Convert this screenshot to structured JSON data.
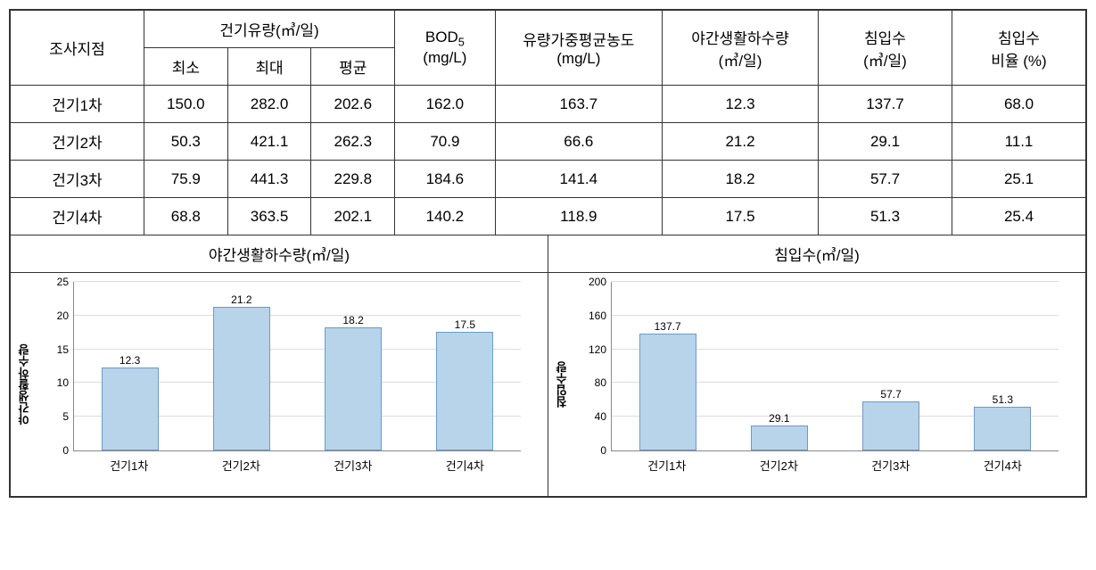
{
  "table": {
    "headers": {
      "survey_point": "조사지점",
      "dry_flow": "건기유량(㎥/일)",
      "min": "최소",
      "max": "최대",
      "avg": "평균",
      "bod5_html": "BOD",
      "bod5_sub": "5",
      "bod5_unit": "(mg/L)",
      "flow_weighted_avg_conc": "유량가중평균농도",
      "flow_weighted_unit": "(mg/L)",
      "night_domestic": "야간생활하수량",
      "night_unit": "(㎥/일)",
      "infiltration": "침입수",
      "infiltration_unit": "(㎥/일)",
      "infiltration_ratio": "침입수",
      "ratio_label": "비율 (%)"
    },
    "rows": [
      {
        "label": "건기1차",
        "min": "150.0",
        "max": "282.0",
        "avg": "202.6",
        "bod": "162.0",
        "fwac": "163.7",
        "night": "12.3",
        "infil": "137.7",
        "ratio": "68.0"
      },
      {
        "label": "건기2차",
        "min": "50.3",
        "max": "421.1",
        "avg": "262.3",
        "bod": "70.9",
        "fwac": "66.6",
        "night": "21.2",
        "infil": "29.1",
        "ratio": "11.1"
      },
      {
        "label": "건기3차",
        "min": "75.9",
        "max": "441.3",
        "avg": "229.8",
        "bod": "184.6",
        "fwac": "141.4",
        "night": "18.2",
        "infil": "57.7",
        "ratio": "25.1"
      },
      {
        "label": "건기4차",
        "min": "68.8",
        "max": "363.5",
        "avg": "202.1",
        "bod": "140.2",
        "fwac": "118.9",
        "night": "17.5",
        "infil": "51.3",
        "ratio": "25.4"
      }
    ]
  },
  "chart_left": {
    "title": "야간생활하수량(㎥/일)",
    "y_label": "야간생활하수량",
    "type": "bar",
    "ylim": [
      0,
      25
    ],
    "ytick_step": 5,
    "bar_color": "#b8d4ea",
    "bar_border": "#6a9acb",
    "grid_color": "#dddddd",
    "categories": [
      "건기1차",
      "건기2차",
      "건기3차",
      "건기4차"
    ],
    "values": [
      12.3,
      21.2,
      18.2,
      17.5
    ]
  },
  "chart_right": {
    "title": "침입수(㎥/일)",
    "y_label": "침입수량",
    "type": "bar",
    "ylim": [
      0,
      200
    ],
    "ytick_step": 40,
    "bar_color": "#b8d4ea",
    "bar_border": "#6a9acb",
    "grid_color": "#dddddd",
    "categories": [
      "건기1차",
      "건기2차",
      "건기3차",
      "건기4차"
    ],
    "values": [
      137.7,
      29.1,
      57.7,
      51.3
    ]
  }
}
